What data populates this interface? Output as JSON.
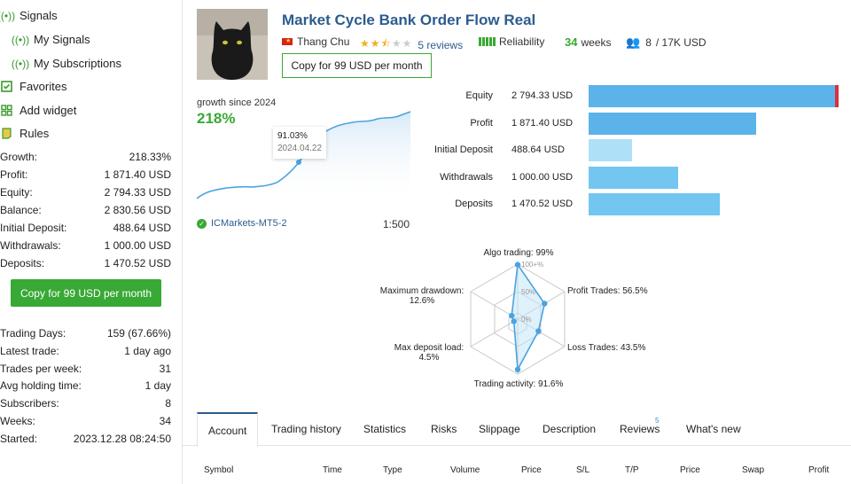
{
  "sidebar": {
    "nav": [
      {
        "label": "Signals",
        "icon": "signal-icon"
      },
      {
        "label": "My Signals",
        "icon": "signal-icon"
      },
      {
        "label": "My Subscriptions",
        "icon": "signal-icon"
      },
      {
        "label": "Favorites",
        "icon": "favorites-icon"
      },
      {
        "label": "Add widget",
        "icon": "widget-icon"
      },
      {
        "label": "Rules",
        "icon": "rules-icon"
      }
    ],
    "stats": [
      {
        "label": "Growth:",
        "value": "218.33%"
      },
      {
        "label": "Profit:",
        "value": "1 871.40 USD"
      },
      {
        "label": "Equity:",
        "value": "2 794.33 USD"
      },
      {
        "label": "Balance:",
        "value": "2 830.56 USD"
      },
      {
        "label": "Initial Deposit:",
        "value": "488.64 USD"
      },
      {
        "label": "Withdrawals:",
        "value": "1 000.00 USD"
      },
      {
        "label": "Deposits:",
        "value": "1 470.52 USD"
      }
    ],
    "copy_button": "Copy for 99 USD per month",
    "stats2": [
      {
        "label": "Trading Days:",
        "value": "159 (67.66%)"
      },
      {
        "label": "Latest trade:",
        "value": "1 day ago"
      },
      {
        "label": "Trades per week:",
        "value": "31"
      },
      {
        "label": "Avg holding time:",
        "value": "1 day"
      },
      {
        "label": "Subscribers:",
        "value": "8"
      },
      {
        "label": "Weeks:",
        "value": "34"
      },
      {
        "label": "Started:",
        "value": "2023.12.28 08:24:50"
      }
    ]
  },
  "header": {
    "title": "Market Cycle Bank Order Flow Real",
    "author": "Thang Chu",
    "rating": 2.5,
    "reviews": "5 reviews",
    "reliability": "Reliability",
    "weeks_num": "34",
    "weeks_label": "weeks",
    "subscribers": "8",
    "capacity": "/ 17K USD",
    "copy_button": "Copy for 99 USD per month"
  },
  "growth": {
    "label": "growth since 2024",
    "value": "218%",
    "tooltip_value": "91.03%",
    "tooltip_date": "2024.04.22",
    "broker": "ICMarkets-MT5-2",
    "leverage": "1:500"
  },
  "balance_bars": [
    {
      "label": "Equity",
      "value": "2 794.33 USD",
      "amount": 2794.33,
      "color": "#5bb3ea"
    },
    {
      "label": "Profit",
      "value": "1 871.40 USD",
      "amount": 1871.4,
      "color": "#5bb3ea"
    },
    {
      "label": "Initial Deposit",
      "value": "488.64 USD",
      "amount": 488.64,
      "color": "#aee0f7"
    },
    {
      "label": "Withdrawals",
      "value": "1 000.00 USD",
      "amount": 1000.0,
      "color": "#72c6f0"
    },
    {
      "label": "Deposits",
      "value": "1 470.52 USD",
      "amount": 1470.52,
      "color": "#72c6f0"
    }
  ],
  "radar": {
    "labels": {
      "algo": "Algo trading: 99%",
      "profit": "Profit Trades: 56.5%",
      "loss": "Loss Trades: 43.5%",
      "activity": "Trading activity: 91.6%",
      "deposit_line1": "Max deposit load:",
      "deposit_line2": "4.5%",
      "drawdown_line1": "Maximum drawdown:",
      "drawdown_line2": "12.6%"
    },
    "scale": [
      "100+%",
      "50%",
      "0%"
    ],
    "values": {
      "algo": 99,
      "profit": 56.5,
      "loss": 43.5,
      "activity": 91.6,
      "deposit": 4.5,
      "drawdown": 12.6
    }
  },
  "tabs": [
    {
      "label": "Account",
      "active": true
    },
    {
      "label": "Trading history"
    },
    {
      "label": "Statistics"
    },
    {
      "label": "Risks"
    },
    {
      "label": "Slippage"
    },
    {
      "label": "Description"
    },
    {
      "label": "Reviews",
      "badge": "5"
    },
    {
      "label": "What's new"
    }
  ],
  "table_columns": [
    "Symbol",
    "Time",
    "Type",
    "Volume",
    "Price",
    "S/L",
    "T/P",
    "Price",
    "Swap",
    "Profit"
  ]
}
